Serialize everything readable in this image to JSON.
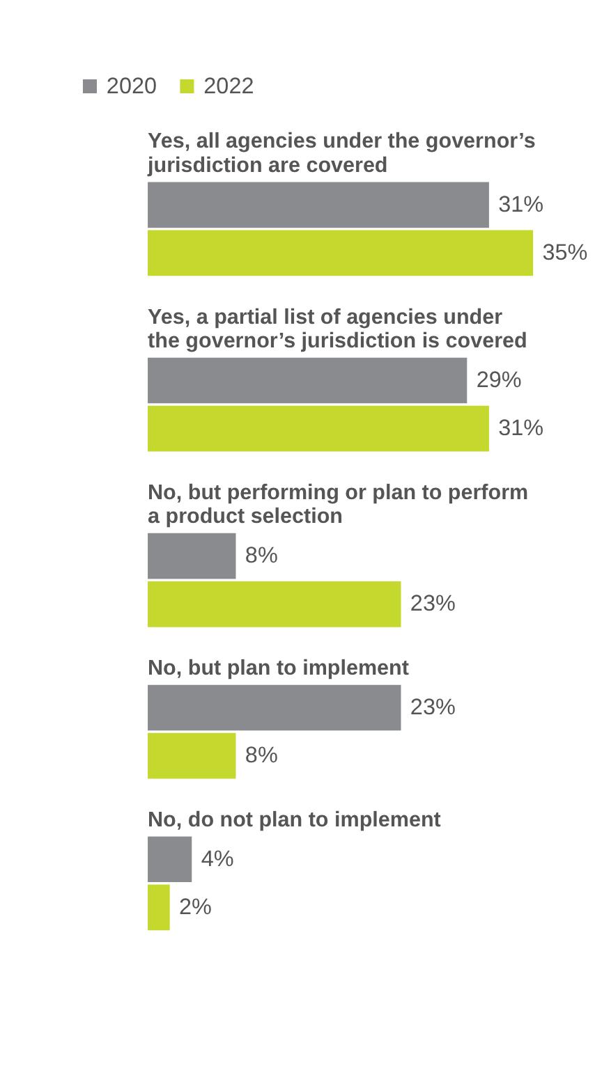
{
  "chart_data": {
    "type": "bar",
    "orientation": "horizontal",
    "legend": "top left",
    "categories": [
      "Yes, all agencies under the governor’s jurisdiction are covered",
      "Yes, a partial list of agencies under the governor’s jurisdiction is covered",
      "No, but performing or plan to perform a product selection",
      "No, but plan to implement",
      "No, do not plan to implement"
    ],
    "series": [
      {
        "name": "2020",
        "color": "#898b8e",
        "values": [
          31,
          29,
          8,
          23,
          4
        ],
        "value_labels": [
          "31%",
          "29%",
          "8%",
          "23%",
          "4%"
        ]
      },
      {
        "name": "2022",
        "color": "#c5d82e",
        "values": [
          35,
          31,
          23,
          8,
          2
        ],
        "value_labels": [
          "35%",
          "31%",
          "23%",
          "8%",
          "2%"
        ]
      }
    ]
  }
}
